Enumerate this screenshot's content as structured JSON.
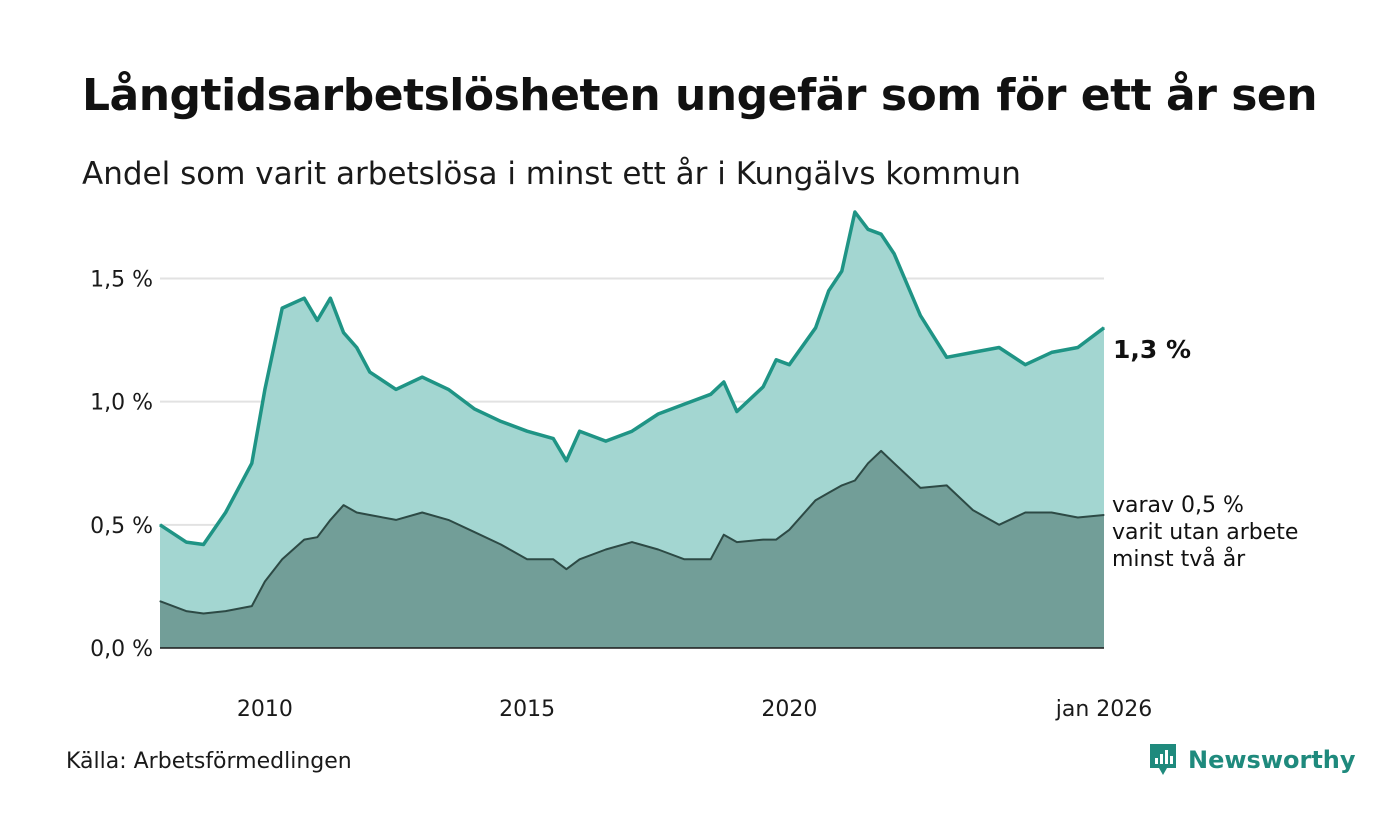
{
  "header": {
    "title": "Långtidsarbetslösheten ungefär som för ett år sen",
    "subtitle": "Andel som varit arbetslösa i minst ett år i Kungälvs kommun"
  },
  "footer": {
    "source": "Källa: Arbetsförmedlingen",
    "brand": "Newsworthy"
  },
  "colors": {
    "area_main": "#a3d6d1",
    "line_main": "#1f9485",
    "area_sub": "#729e98",
    "line_sub": "#2d4a45",
    "grid": "#e2e2e2",
    "brand": "#1f8a7d"
  },
  "chart_data": {
    "type": "area",
    "title": "Långtidsarbetslösheten ungefär som för ett år sen",
    "subtitle": "Andel som varit arbetslösa i minst ett år i Kungälvs kommun",
    "xlabel": "",
    "ylabel": "",
    "ylim": [
      0,
      1.9
    ],
    "xlim": [
      2008.0,
      2026.0
    ],
    "yticks": [
      0,
      0.5,
      1.0,
      1.5
    ],
    "ytick_labels": [
      "0,0 %",
      "0,5 %",
      "1,0 %",
      "1,5 %"
    ],
    "xticks": [
      2010,
      2015,
      2020,
      2026.0
    ],
    "xtick_labels": [
      "2010",
      "2015",
      "2020",
      "jan 2026"
    ],
    "grid": true,
    "series": [
      {
        "name": "Minst ett år",
        "x": [
          2008.0,
          2008.5,
          2008.83,
          2009.25,
          2009.75,
          2010.0,
          2010.33,
          2010.75,
          2011.0,
          2011.25,
          2011.5,
          2011.75,
          2012.0,
          2012.5,
          2013.0,
          2013.5,
          2014.0,
          2014.5,
          2015.0,
          2015.5,
          2015.75,
          2016.0,
          2016.5,
          2017.0,
          2017.5,
          2018.0,
          2018.5,
          2018.75,
          2019.0,
          2019.5,
          2019.75,
          2020.0,
          2020.5,
          2020.75,
          2021.0,
          2021.25,
          2021.5,
          2021.75,
          2022.0,
          2022.5,
          2023.0,
          2023.5,
          2024.0,
          2024.5,
          2025.0,
          2025.5,
          2026.0
        ],
        "values": [
          0.5,
          0.43,
          0.42,
          0.55,
          0.75,
          1.05,
          1.38,
          1.42,
          1.33,
          1.42,
          1.28,
          1.22,
          1.12,
          1.05,
          1.1,
          1.05,
          0.97,
          0.92,
          0.88,
          0.85,
          0.76,
          0.88,
          0.84,
          0.88,
          0.95,
          0.99,
          1.03,
          1.08,
          0.96,
          1.06,
          1.17,
          1.15,
          1.3,
          1.45,
          1.53,
          1.77,
          1.7,
          1.68,
          1.6,
          1.35,
          1.18,
          1.2,
          1.22,
          1.15,
          1.2,
          1.22,
          1.3
        ],
        "end_label": "1,3 %"
      },
      {
        "name": "varav minst två år",
        "x": [
          2008.0,
          2008.5,
          2008.83,
          2009.25,
          2009.75,
          2010.0,
          2010.33,
          2010.75,
          2011.0,
          2011.25,
          2011.5,
          2011.75,
          2012.0,
          2012.5,
          2013.0,
          2013.5,
          2014.0,
          2014.5,
          2015.0,
          2015.5,
          2015.75,
          2016.0,
          2016.5,
          2017.0,
          2017.5,
          2018.0,
          2018.5,
          2018.75,
          2019.0,
          2019.5,
          2019.75,
          2020.0,
          2020.5,
          2020.75,
          2021.0,
          2021.25,
          2021.5,
          2021.75,
          2022.0,
          2022.5,
          2023.0,
          2023.5,
          2024.0,
          2024.5,
          2025.0,
          2025.5,
          2026.0
        ],
        "values": [
          0.19,
          0.15,
          0.14,
          0.15,
          0.17,
          0.27,
          0.36,
          0.44,
          0.45,
          0.52,
          0.58,
          0.55,
          0.54,
          0.52,
          0.55,
          0.52,
          0.47,
          0.42,
          0.36,
          0.36,
          0.32,
          0.36,
          0.4,
          0.43,
          0.4,
          0.36,
          0.36,
          0.46,
          0.43,
          0.44,
          0.44,
          0.48,
          0.6,
          0.63,
          0.66,
          0.68,
          0.75,
          0.8,
          0.75,
          0.65,
          0.66,
          0.56,
          0.5,
          0.55,
          0.55,
          0.53,
          0.54
        ],
        "end_label_lines": [
          "varav 0,5 %",
          "varit utan arbete",
          "minst två år"
        ]
      }
    ]
  }
}
